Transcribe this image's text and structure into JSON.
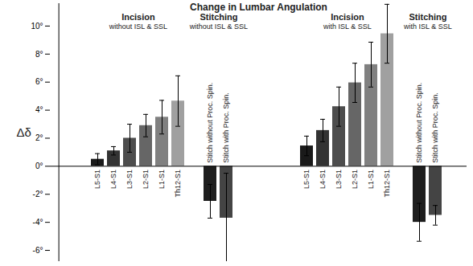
{
  "chart_data": {
    "type": "bar",
    "title": "Change in Lumbar Angulation",
    "annotations": [
      "Δδ"
    ],
    "ylim": [
      -6.8,
      11.6
    ],
    "yticks": [
      {
        "value": -6,
        "label": "-6°"
      },
      {
        "value": -4,
        "label": "-4°"
      },
      {
        "value": -2,
        "label": "-2°"
      },
      {
        "value": 0,
        "label": "0°"
      },
      {
        "value": 2,
        "label": "2°"
      },
      {
        "value": 4,
        "label": "4°"
      },
      {
        "value": 6,
        "label": "6°"
      },
      {
        "value": 8,
        "label": "8°"
      },
      {
        "value": 10,
        "label": "10°"
      }
    ],
    "groups": [
      {
        "title": "Incision",
        "subtitle": "without ISL & SSL",
        "categories": [
          "L5-S1",
          "L4-S1",
          "L3-S1",
          "L2-S1",
          "L1-S1",
          "Th12-S1"
        ],
        "values": [
          0.5,
          1.1,
          2.0,
          2.9,
          3.5,
          4.65
        ],
        "errors": [
          0.4,
          0.3,
          1.0,
          0.8,
          1.2,
          1.8
        ],
        "colors": [
          "#1a1a1a",
          "#333333",
          "#4d4d4d",
          "#666666",
          "#808080",
          "#a0a0a0"
        ]
      },
      {
        "title": "Stitching",
        "subtitle": "without ISL & SSL",
        "categories": [
          "Stitch without Proc. Spin.",
          "Stitch with Proc. Spin."
        ],
        "values": [
          -2.5,
          -3.7
        ],
        "errors": [
          1.2,
          3.2
        ],
        "colors": [
          "#1e1e1e",
          "#444444"
        ]
      },
      {
        "title": "Incision",
        "subtitle": "with ISL & SSL",
        "categories": [
          "L5-S1",
          "L4-S1",
          "L3-S1",
          "L2-S1",
          "L1-S1",
          "Th12-S1"
        ],
        "values": [
          1.45,
          2.55,
          4.25,
          5.95,
          7.25,
          9.45
        ],
        "errors": [
          0.7,
          0.8,
          1.4,
          1.4,
          1.6,
          2.1
        ],
        "colors": [
          "#1a1a1a",
          "#333333",
          "#4d4d4d",
          "#666666",
          "#808080",
          "#a0a0a0"
        ]
      },
      {
        "title": "Stitching",
        "subtitle": "with ISL & SSL",
        "categories": [
          "Stitch without Proc. Spin.",
          "Stitch with Proc. Spin."
        ],
        "values": [
          -4.0,
          -3.5
        ],
        "errors": [
          1.35,
          0.7
        ],
        "colors": [
          "#1e1e1e",
          "#444444"
        ]
      }
    ]
  }
}
